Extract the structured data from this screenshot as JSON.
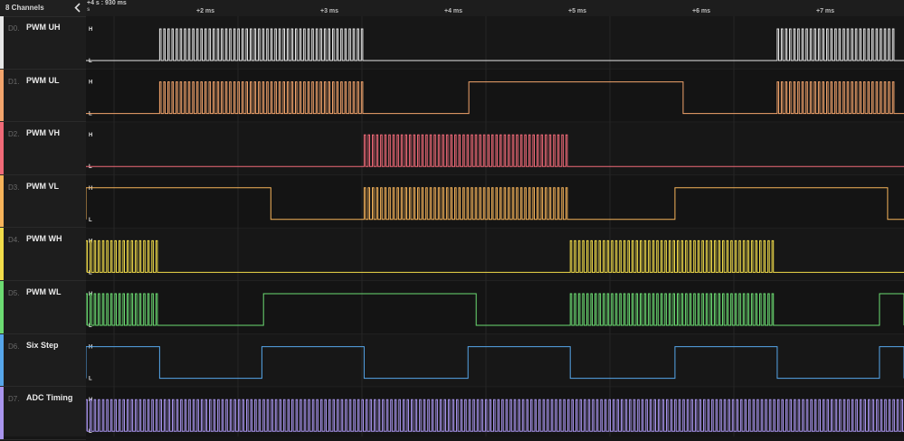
{
  "sidebar": {
    "title": "8 Channels",
    "collapse_icon": "chevron-left-icon"
  },
  "timeline": {
    "offset_label": "+4 s : 930 ms",
    "unit_label": "s",
    "ticks": [
      "+2 ms",
      "+3 ms",
      "+4 ms",
      "+5 ms",
      "+6 ms",
      "+7 ms"
    ]
  },
  "level_labels": {
    "high": "H",
    "low": "L"
  },
  "channels": [
    {
      "index": "D0.",
      "name": "PWM UH",
      "color": "#e6e6e6",
      "waveform": "mixed",
      "visible_pwm_segments": [
        [
          0.09,
          0.34
        ],
        [
          0.845,
          0.99
        ]
      ],
      "visible_high_segments": []
    },
    {
      "index": "D1.",
      "name": "PWM UL",
      "color": "#f2a46c",
      "waveform": "mixed",
      "visible_pwm_segments": [
        [
          0.09,
          0.34
        ],
        [
          0.845,
          0.99
        ]
      ],
      "visible_high_segments": [
        [
          0.468,
          0.73
        ]
      ]
    },
    {
      "index": "D2.",
      "name": "PWM VH",
      "color": "#f06a78",
      "waveform": "mixed",
      "visible_pwm_segments": [
        [
          0.34,
          0.592
        ]
      ],
      "visible_high_segments": []
    },
    {
      "index": "D3.",
      "name": "PWM VL",
      "color": "#f6b35a",
      "waveform": "mixed",
      "visible_pwm_segments": [
        [
          0.34,
          0.592
        ]
      ],
      "visible_high_segments": [
        [
          0.0,
          0.226
        ],
        [
          0.72,
          0.98
        ]
      ]
    },
    {
      "index": "D4.",
      "name": "PWM WH",
      "color": "#f1dc4a",
      "waveform": "mixed",
      "visible_pwm_segments": [
        [
          0.0,
          0.09
        ],
        [
          0.592,
          0.845
        ]
      ],
      "visible_high_segments": []
    },
    {
      "index": "D5.",
      "name": "PWM WL",
      "color": "#6cdb72",
      "waveform": "mixed",
      "visible_pwm_segments": [
        [
          0.0,
          0.09
        ],
        [
          0.592,
          0.845
        ]
      ],
      "visible_high_segments": [
        [
          0.217,
          0.477
        ],
        [
          0.97,
          1.0
        ]
      ]
    },
    {
      "index": "D6.",
      "name": "Six Step",
      "color": "#56a6ea",
      "waveform": "square",
      "visible_pwm_segments": [],
      "visible_high_segments": [
        [
          0.0,
          0.09
        ],
        [
          0.215,
          0.34
        ],
        [
          0.467,
          0.592
        ],
        [
          0.72,
          0.845
        ],
        [
          0.97,
          1.0
        ]
      ]
    },
    {
      "index": "D7.",
      "name": "ADC Timing",
      "color": "#a995ee",
      "waveform": "pulse-train",
      "visible_pwm_segments": [
        [
          0.0,
          1.0
        ]
      ],
      "visible_high_segments": []
    }
  ]
}
